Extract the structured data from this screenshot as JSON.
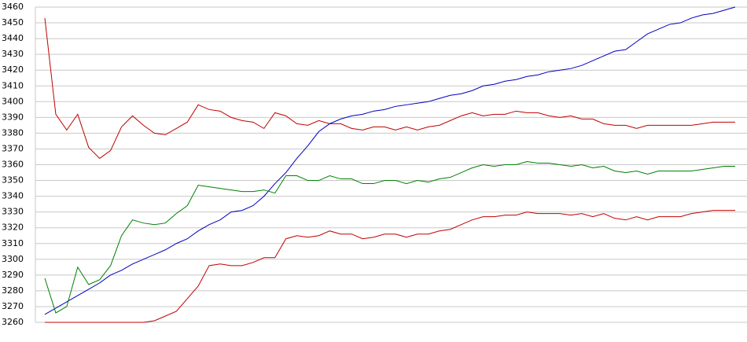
{
  "chart_data": {
    "type": "line",
    "categories": [
      null,
      null,
      null,
      null,
      null,
      null,
      null,
      null,
      null,
      null,
      null,
      null,
      null,
      null,
      null,
      null,
      null,
      null,
      null,
      null,
      null,
      null,
      null,
      null,
      null,
      null,
      null,
      null,
      null,
      null,
      null,
      null,
      null,
      null,
      null,
      null,
      null,
      null,
      null,
      null,
      null,
      null,
      null,
      null,
      null,
      null,
      null,
      null,
      null,
      null,
      null,
      null,
      null,
      null,
      null,
      null,
      null,
      null,
      null,
      null,
      null,
      null,
      null,
      null
    ],
    "series": [
      {
        "color": "#c00000",
        "values": [
          3453,
          3392,
          3382,
          3392,
          3371,
          3364,
          3369,
          3384,
          3391,
          3385,
          3380,
          3379,
          3383,
          3387,
          3398,
          3395,
          3394,
          3390,
          3388,
          3387,
          3383,
          3393,
          3391,
          3386,
          3385,
          3388,
          3386,
          3386,
          3383,
          3382,
          3384,
          3384,
          3382,
          3384,
          3382,
          3384,
          3385,
          3388,
          3391,
          3393,
          3391,
          3392,
          3392,
          3394,
          3393,
          3393,
          3391,
          3390,
          3391,
          3389,
          3389,
          3386,
          3385,
          3385,
          3383,
          3385,
          3385,
          3385,
          3385,
          3385,
          3386,
          3387,
          3387,
          3387
        ]
      },
      {
        "color": "#0000c0",
        "values": [
          3265,
          3269,
          3273,
          3277,
          3281,
          3285,
          3290,
          3293,
          3297,
          3300,
          3303,
          3306,
          3310,
          3313,
          3318,
          3322,
          3325,
          3330,
          3331,
          3334,
          3340,
          3348,
          3355,
          3364,
          3372,
          3381,
          3386,
          3389,
          3391,
          3392,
          3394,
          3395,
          3397,
          3398,
          3399,
          3400,
          3402,
          3404,
          3405,
          3407,
          3410,
          3411,
          3413,
          3414,
          3416,
          3417,
          3419,
          3420,
          3421,
          3423,
          3426,
          3429,
          3432,
          3433,
          3438,
          3443,
          3446,
          3449,
          3450,
          3453,
          3455,
          3456,
          3458,
          3460
        ]
      },
      {
        "color": "#008000",
        "values": [
          3288,
          3266,
          3270,
          3295,
          3284,
          3287,
          3296,
          3315,
          3325,
          3323,
          3322,
          3323,
          3329,
          3334,
          3347,
          3346,
          3345,
          3344,
          3343,
          3343,
          3344,
          3342,
          3353,
          3353,
          3350,
          3350,
          3353,
          3351,
          3351,
          3348,
          3348,
          3350,
          3350,
          3348,
          3350,
          3349,
          3351,
          3352,
          3355,
          3358,
          3360,
          3359,
          3360,
          3360,
          3362,
          3361,
          3361,
          3360,
          3359,
          3360,
          3358,
          3359,
          3356,
          3355,
          3356,
          3354,
          3356,
          3356,
          3356,
          3356,
          3357,
          3358,
          3359,
          3359
        ]
      },
      {
        "color": "#c00000",
        "values": [
          3260,
          3260,
          3260,
          3260,
          3260,
          3260,
          3260,
          3260,
          3260,
          3260,
          3261,
          3264,
          3267,
          3275,
          3283,
          3296,
          3297,
          3296,
          3296,
          3298,
          3301,
          3301,
          3313,
          3315,
          3314,
          3315,
          3318,
          3316,
          3316,
          3313,
          3314,
          3316,
          3316,
          3314,
          3316,
          3316,
          3318,
          3319,
          3322,
          3325,
          3327,
          3327,
          3328,
          3328,
          3330,
          3329,
          3329,
          3329,
          3328,
          3329,
          3327,
          3329,
          3326,
          3325,
          3327,
          3325,
          3327,
          3327,
          3327,
          3329,
          3330,
          3331,
          3331,
          3331
        ]
      }
    ],
    "ylim": [
      3260,
      3460
    ],
    "yticks": [
      3260,
      3270,
      3280,
      3290,
      3300,
      3310,
      3320,
      3330,
      3340,
      3350,
      3360,
      3370,
      3380,
      3390,
      3400,
      3410,
      3420,
      3430,
      3440,
      3450,
      3460
    ],
    "grid": true
  }
}
